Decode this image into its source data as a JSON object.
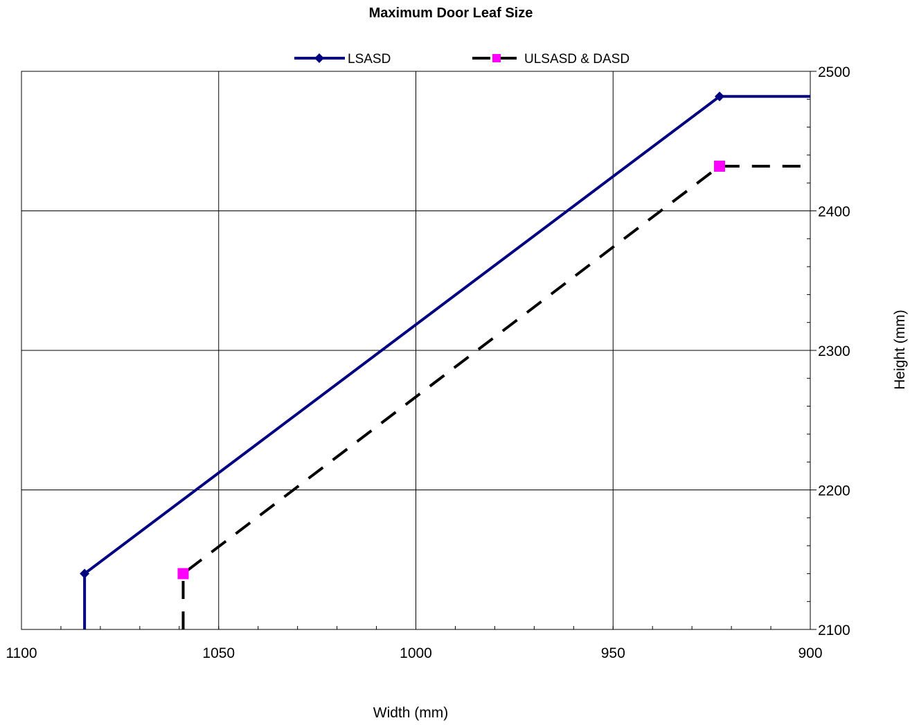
{
  "chart_data": {
    "type": "line",
    "title": "Maximum Door Leaf Size",
    "xlabel": "Width (mm)",
    "ylabel": "Height (mm)",
    "xlim": [
      1100,
      900
    ],
    "x_reversed": true,
    "ylim": [
      2100,
      2500
    ],
    "x_ticks": [
      "1100",
      "1050",
      "1000",
      "950",
      "900"
    ],
    "y_ticks": [
      "2100",
      "2200",
      "2300",
      "2400",
      "2500"
    ],
    "y_axis_side": "right",
    "grid": true,
    "legend_position": "top",
    "series": [
      {
        "name": "LSASD",
        "color": "#000080",
        "marker": "diamond",
        "line_style": "solid",
        "points": [
          [
            1084,
            2100
          ],
          [
            1084,
            2140
          ],
          [
            923,
            2482
          ],
          [
            900,
            2482
          ]
        ],
        "marker_points": [
          [
            1084,
            2140
          ],
          [
            923,
            2482
          ]
        ]
      },
      {
        "name": "ULSASD & DASD",
        "color": "#000000",
        "marker_color": "#ff00ff",
        "marker": "square",
        "line_style": "dashed",
        "points": [
          [
            1059,
            2100
          ],
          [
            1059,
            2140
          ],
          [
            923,
            2432
          ],
          [
            900,
            2432
          ]
        ],
        "marker_points": [
          [
            1059,
            2140
          ],
          [
            923,
            2432
          ]
        ]
      }
    ]
  }
}
